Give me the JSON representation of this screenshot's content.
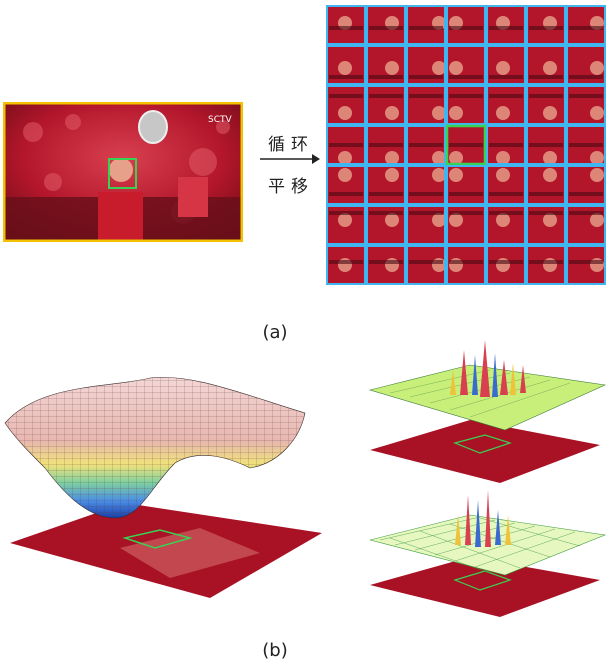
{
  "panel_a": {
    "caption": "(a)",
    "arrow_text_line1": "循环",
    "arrow_text_line2": "平移",
    "source_logo_text": "SCTV",
    "grid_rows": 7,
    "grid_cols": 7,
    "highlight_row": 3,
    "highlight_col": 3,
    "colors": {
      "frame": "#f2c200",
      "target_box": "#39d353",
      "grid_border": "#3fb6f2",
      "image_red": "#b3162b"
    }
  },
  "panel_b": {
    "caption": "(b)"
  }
}
